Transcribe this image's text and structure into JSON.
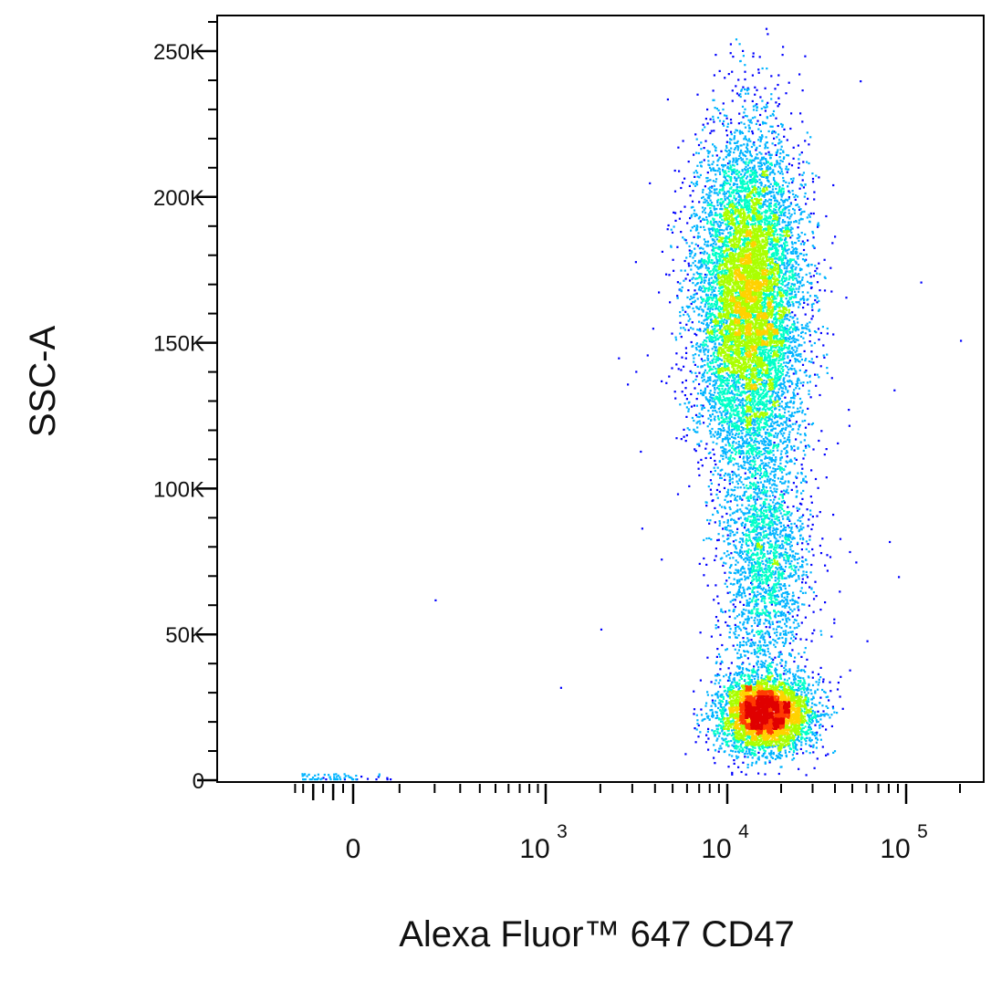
{
  "chart_data": {
    "type": "scatter",
    "subtype": "flow-cytometry-density-dot-plot",
    "xlabel": "Alexa Fluor™ 647 CD47",
    "ylabel": "SSC-A",
    "x_scale": "biexponential",
    "x_range": [
      -300,
      200000
    ],
    "ylim": [
      0,
      262144
    ],
    "y_ticks": [
      {
        "value": 0,
        "label": "0"
      },
      {
        "value": 50000,
        "label": "50K"
      },
      {
        "value": 100000,
        "label": "100K"
      },
      {
        "value": 150000,
        "label": "150K"
      },
      {
        "value": 200000,
        "label": "200K"
      },
      {
        "value": 250000,
        "label": "250K"
      }
    ],
    "x_ticks": [
      {
        "value": 0,
        "base": "0",
        "exp": ""
      },
      {
        "value": 1000,
        "base": "10",
        "exp": "3"
      },
      {
        "value": 10000,
        "base": "10",
        "exp": "4"
      },
      {
        "value": 100000,
        "base": "10",
        "exp": "5"
      }
    ],
    "density_colors": [
      "#0000ff",
      "#00b4ff",
      "#00ffc8",
      "#aaff00",
      "#ffd200",
      "#ff3c00",
      "#e00000"
    ],
    "grid": false,
    "legend": "none",
    "populations": [
      {
        "name": "",
        "x_center": 13000,
        "y_center": 165000,
        "x_spread_decades": 0.15,
        "y_spread": 28000,
        "events": 9000
      },
      {
        "name": "",
        "x_center": 17000,
        "y_center": 75000,
        "x_spread_decades": 0.12,
        "y_spread": 17000,
        "events": 1200
      },
      {
        "name": "",
        "x_center": 16000,
        "y_center": 23000,
        "x_spread_decades": 0.13,
        "y_spread": 6500,
        "events": 4500
      }
    ],
    "outlier_events": [
      {
        "x": 200,
        "y": 62000
      },
      {
        "x": 1200,
        "y": 32000
      },
      {
        "x": 2000,
        "y": 52000
      },
      {
        "x": 2500,
        "y": 145000
      },
      {
        "x": 2800,
        "y": 136000
      },
      {
        "x": 3100,
        "y": 178000
      },
      {
        "x": 3300,
        "y": 113000
      },
      {
        "x": 3700,
        "y": 205000
      },
      {
        "x": 3600,
        "y": 146000
      },
      {
        "x": 5000,
        "y": 195000
      },
      {
        "x": 4300,
        "y": 76000
      },
      {
        "x": 30000,
        "y": 58000
      },
      {
        "x": 42000,
        "y": 65000
      },
      {
        "x": 52000,
        "y": 75000
      },
      {
        "x": 80000,
        "y": 82000
      },
      {
        "x": 90000,
        "y": 70000
      },
      {
        "x": 120000,
        "y": 171000
      },
      {
        "x": 85000,
        "y": 134000
      },
      {
        "x": 55000,
        "y": 240000
      },
      {
        "x": 200000,
        "y": 151000
      },
      {
        "x": 60000,
        "y": 48000
      },
      {
        "x": 48000,
        "y": 38000
      }
    ],
    "negative_events_near_zero": {
      "x_range": [
        -260,
        80
      ],
      "y_range": [
        0,
        2500
      ],
      "events": 60
    }
  }
}
